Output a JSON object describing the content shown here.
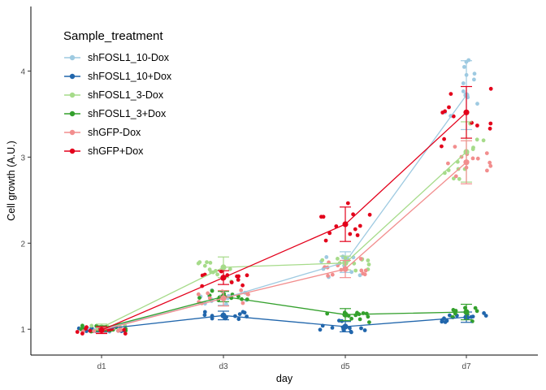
{
  "chart_data": {
    "type": "line",
    "xlabel": "day",
    "ylabel": "Cell growth (A.U.)",
    "categories": [
      "d1",
      "d3",
      "d5",
      "d7"
    ],
    "ylim": [
      0.7,
      4.75
    ],
    "yticks": [
      1,
      2,
      3,
      4
    ],
    "grid": false,
    "legend": {
      "title": "Sample_treatment",
      "position": "top-left"
    },
    "series": [
      {
        "name": "shFOSL1_10-Dox",
        "color": "#9ECAE1",
        "values": [
          1.0,
          1.36,
          1.78,
          3.72
        ],
        "errors": [
          0.04,
          0.08,
          0.12,
          0.4
        ]
      },
      {
        "name": "shFOSL1_10+Dox",
        "color": "#2166AC",
        "values": [
          1.0,
          1.16,
          1.03,
          1.14
        ],
        "errors": [
          0.03,
          0.05,
          0.06,
          0.06
        ]
      },
      {
        "name": "shFOSL1_3-Dox",
        "color": "#A6DB8A",
        "values": [
          1.02,
          1.72,
          1.77,
          3.06
        ],
        "errors": [
          0.04,
          0.12,
          0.08,
          0.35
        ]
      },
      {
        "name": "shFOSL1_3+Dox",
        "color": "#33A02C",
        "values": [
          1.01,
          1.38,
          1.17,
          1.2
        ],
        "errors": [
          0.03,
          0.06,
          0.07,
          0.09
        ]
      },
      {
        "name": "shGFP-Dox",
        "color": "#F28E8E",
        "values": [
          0.99,
          1.36,
          1.7,
          2.94
        ],
        "errors": [
          0.03,
          0.09,
          0.1,
          0.25
        ]
      },
      {
        "name": "shGFP+Dox",
        "color": "#E3001B",
        "values": [
          0.99,
          1.6,
          2.22,
          3.52
        ],
        "errors": [
          0.04,
          0.08,
          0.2,
          0.3
        ]
      }
    ]
  }
}
